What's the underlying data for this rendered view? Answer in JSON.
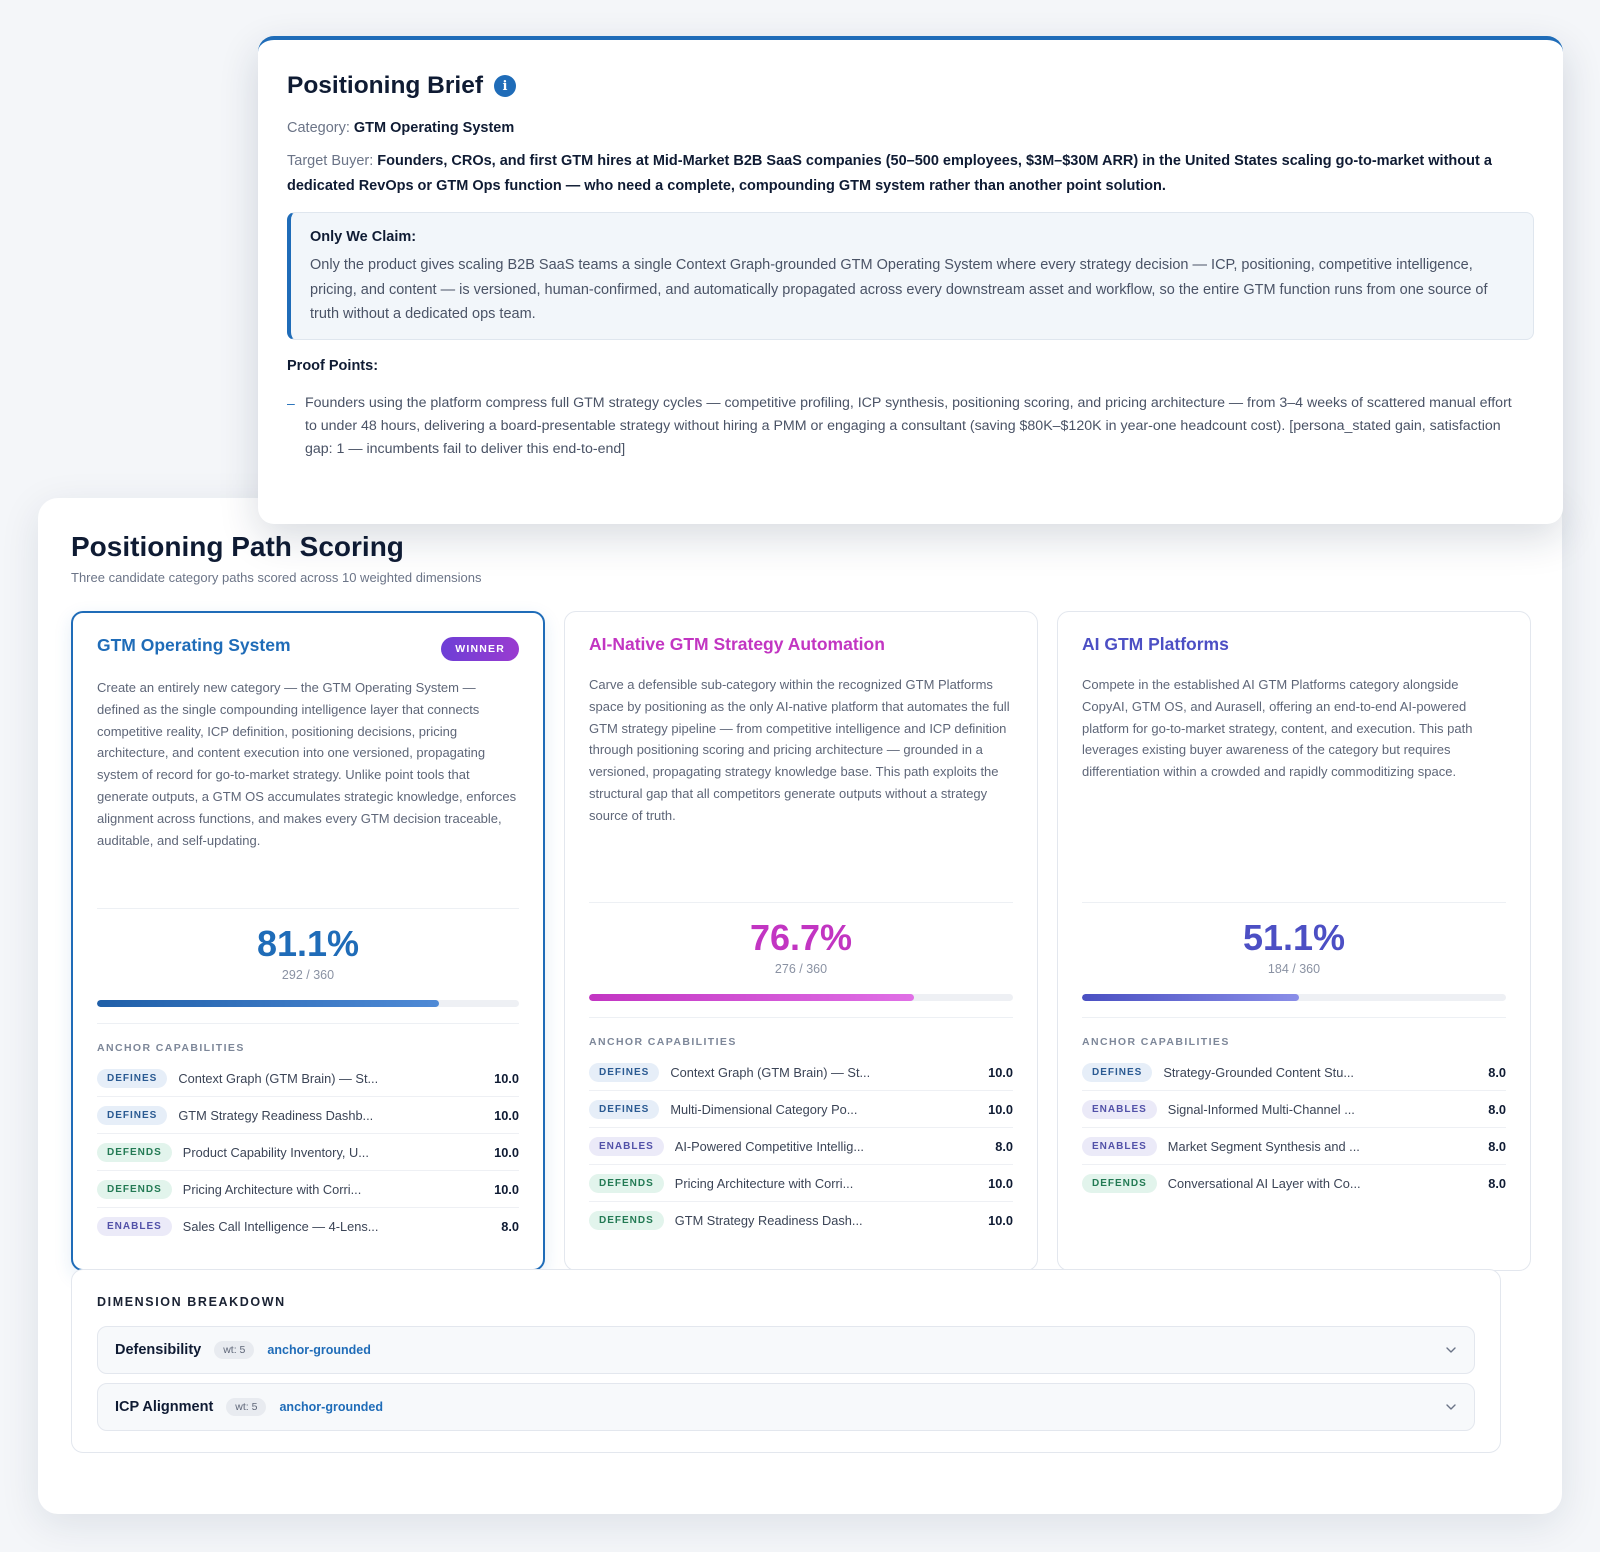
{
  "brief": {
    "title": "Positioning Brief",
    "info_icon": "i",
    "category_label": "Category:",
    "category_value": "GTM Operating System",
    "buyer_label": "Target Buyer:",
    "buyer_value": "Founders, CROs, and first GTM hires at Mid-Market B2B SaaS companies (50–500 employees, $3M–$30M ARR) in the United States scaling go-to-market without a dedicated RevOps or GTM Ops function — who need a complete, compounding GTM system rather than another point solution.",
    "claim_title": "Only We Claim:",
    "claim_text": "Only the product gives scaling B2B SaaS teams a single Context Graph-grounded GTM Operating System where every strategy decision — ICP, positioning, competitive intelligence, pricing, and content — is versioned, human-confirmed, and automatically propagated across every downstream asset and workflow, so the entire GTM function runs from one source of truth without a dedicated ops team.",
    "proof_title": "Proof Points:",
    "proof_dash": "–",
    "proof_points": [
      "Founders using the platform compress full GTM strategy cycles — competitive profiling, ICP synthesis, positioning scoring, and pricing architecture — from 3–4 weeks of scattered manual effort to under 48 hours, delivering a board-presentable strategy without hiring a PMM or engaging a consultant (saving $80K–$120K in year-one headcount cost). [persona_stated gain, satisfaction gap: 1 — incumbents fail to deliver this end-to-end]"
    ]
  },
  "scoring": {
    "title": "Positioning Path Scoring",
    "subtitle": "Three candidate category paths scored across 10 weighted dimensions",
    "anchor_heading": "ANCHOR CAPABILITIES",
    "winner_badge": "WINNER",
    "paths": [
      {
        "title": "GTM Operating System",
        "color": "#1f6cb8",
        "gradient": [
          "#1f5fa8",
          "#4f8ad6"
        ],
        "winner": true,
        "description": "Create an entirely new category — the GTM Operating System — defined as the single compounding intelligence layer that connects competitive reality, ICP definition, positioning decisions, pricing architecture, and content execution into one versioned, propagating system of record for go-to-market strategy. Unlike point tools that generate outputs, a GTM OS accumulates strategic knowledge, enforces alignment across functions, and makes every GTM decision traceable, auditable, and self-updating.",
        "score": "81.1%",
        "fraction": "292 / 360",
        "progress": 0.811,
        "anchors": [
          {
            "tag": "DEFINES",
            "type": "defines",
            "name": "Context Graph (GTM Brain) — St...",
            "score": "10.0"
          },
          {
            "tag": "DEFINES",
            "type": "defines",
            "name": "GTM Strategy Readiness Dashb...",
            "score": "10.0"
          },
          {
            "tag": "DEFENDS",
            "type": "defends",
            "name": "Product Capability Inventory, U...",
            "score": "10.0"
          },
          {
            "tag": "DEFENDS",
            "type": "defends",
            "name": "Pricing Architecture with Corri...",
            "score": "10.0"
          },
          {
            "tag": "ENABLES",
            "type": "enables",
            "name": "Sales Call Intelligence — 4-Lens...",
            "score": "8.0"
          }
        ]
      },
      {
        "title": "AI-Native GTM Strategy Automation",
        "color": "#c235c2",
        "gradient": [
          "#c235c2",
          "#e070e6"
        ],
        "winner": false,
        "description": "Carve a defensible sub-category within the recognized GTM Platforms space by positioning as the only AI-native platform that automates the full GTM strategy pipeline — from competitive intelligence and ICP definition through positioning scoring and pricing architecture — grounded in a versioned, propagating strategy knowledge base. This path exploits the structural gap that all competitors generate outputs without a strategy source of truth.",
        "score": "76.7%",
        "fraction": "276 / 360",
        "progress": 0.767,
        "anchors": [
          {
            "tag": "DEFINES",
            "type": "defines",
            "name": "Context Graph (GTM Brain) — St...",
            "score": "10.0"
          },
          {
            "tag": "DEFINES",
            "type": "defines",
            "name": "Multi-Dimensional Category Po...",
            "score": "10.0"
          },
          {
            "tag": "ENABLES",
            "type": "enables",
            "name": "AI-Powered Competitive Intellig...",
            "score": "8.0"
          },
          {
            "tag": "DEFENDS",
            "type": "defends",
            "name": "Pricing Architecture with Corri...",
            "score": "10.0"
          },
          {
            "tag": "DEFENDS",
            "type": "defends",
            "name": "GTM Strategy Readiness Dash...",
            "score": "10.0"
          }
        ]
      },
      {
        "title": "AI GTM Platforms",
        "color": "#4c4fc4",
        "gradient": [
          "#4a50c2",
          "#8a8ee8"
        ],
        "winner": false,
        "description": "Compete in the established AI GTM Platforms category alongside CopyAI, GTM OS, and Aurasell, offering an end-to-end AI-powered platform for go-to-market strategy, content, and execution. This path leverages existing buyer awareness of the category but requires differentiation within a crowded and rapidly commoditizing space.",
        "score": "51.1%",
        "fraction": "184 / 360",
        "progress": 0.511,
        "anchors": [
          {
            "tag": "DEFINES",
            "type": "defines",
            "name": "Strategy-Grounded Content Stu...",
            "score": "8.0"
          },
          {
            "tag": "ENABLES",
            "type": "enables",
            "name": "Signal-Informed Multi-Channel ...",
            "score": "8.0"
          },
          {
            "tag": "ENABLES",
            "type": "enables",
            "name": "Market Segment Synthesis and ...",
            "score": "8.0"
          },
          {
            "tag": "DEFENDS",
            "type": "defends",
            "name": "Conversational AI Layer with Co...",
            "score": "8.0"
          }
        ]
      }
    ],
    "dimension": {
      "title": "DIMENSION BREAKDOWN",
      "rows": [
        {
          "name": "Defensibility",
          "weight": "wt: 5",
          "label": "anchor-grounded"
        },
        {
          "name": "ICP Alignment",
          "weight": "wt: 5",
          "label": "anchor-grounded"
        }
      ]
    }
  }
}
